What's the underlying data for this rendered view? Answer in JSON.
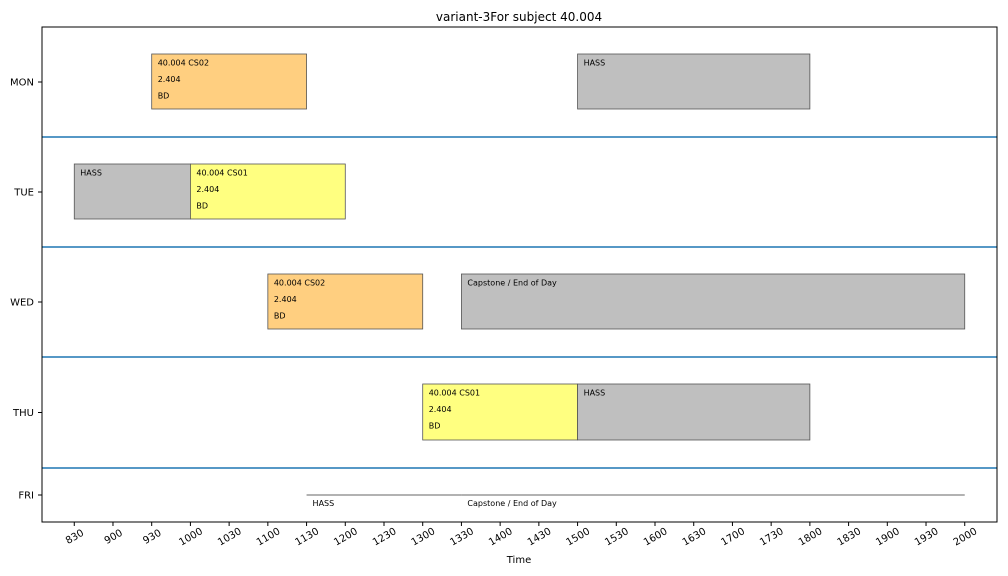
{
  "chart_data": {
    "type": "timetable",
    "title": "variant-3For subject 40.004",
    "xlabel": "Time",
    "ylabel": "",
    "xlim": [
      805,
      2025
    ],
    "x_ticks": [
      "830",
      "900",
      "930",
      "1000",
      "1030",
      "1100",
      "1130",
      "1200",
      "1230",
      "1300",
      "1330",
      "1400",
      "1430",
      "1500",
      "1530",
      "1600",
      "1630",
      "1700",
      "1730",
      "1800",
      "1830",
      "1900",
      "1930",
      "2000"
    ],
    "days": [
      "MON",
      "TUE",
      "WED",
      "THU",
      "FRI"
    ],
    "separator_color": "#1f77b4",
    "colors": {
      "cs02": "#ffcf80",
      "cs01": "#ffff80",
      "other": "#bfbfbf"
    },
    "events": [
      {
        "day": "MON",
        "start": "930",
        "end": "1130",
        "lines": [
          "40.004 CS02",
          "2.404",
          "BD"
        ],
        "color": "#ffcf80"
      },
      {
        "day": "MON",
        "start": "1500",
        "end": "1800",
        "lines": [
          "HASS"
        ],
        "color": "#bfbfbf"
      },
      {
        "day": "TUE",
        "start": "830",
        "end": "1000",
        "lines": [
          "HASS"
        ],
        "color": "#bfbfbf"
      },
      {
        "day": "TUE",
        "start": "1000",
        "end": "1200",
        "lines": [
          "40.004 CS01",
          "2.404",
          "BD"
        ],
        "color": "#ffff80"
      },
      {
        "day": "WED",
        "start": "1100",
        "end": "1300",
        "lines": [
          "40.004 CS02",
          "2.404",
          "BD"
        ],
        "color": "#ffcf80"
      },
      {
        "day": "WED",
        "start": "1330",
        "end": "2000",
        "lines": [
          "Capstone / End of Day"
        ],
        "color": "#bfbfbf"
      },
      {
        "day": "THU",
        "start": "1300",
        "end": "1500",
        "lines": [
          "40.004 CS01",
          "2.404",
          "BD"
        ],
        "color": "#ffff80"
      },
      {
        "day": "THU",
        "start": "1500",
        "end": "1800",
        "lines": [
          "HASS"
        ],
        "color": "#bfbfbf"
      },
      {
        "day": "FRI",
        "start": "1130",
        "end": "1330",
        "lines": [
          "HASS"
        ],
        "color": "#bfbfbf"
      },
      {
        "day": "FRI",
        "start": "1330",
        "end": "2000",
        "lines": [
          "Capstone / End of Day"
        ],
        "color": "#bfbfbf"
      }
    ]
  }
}
